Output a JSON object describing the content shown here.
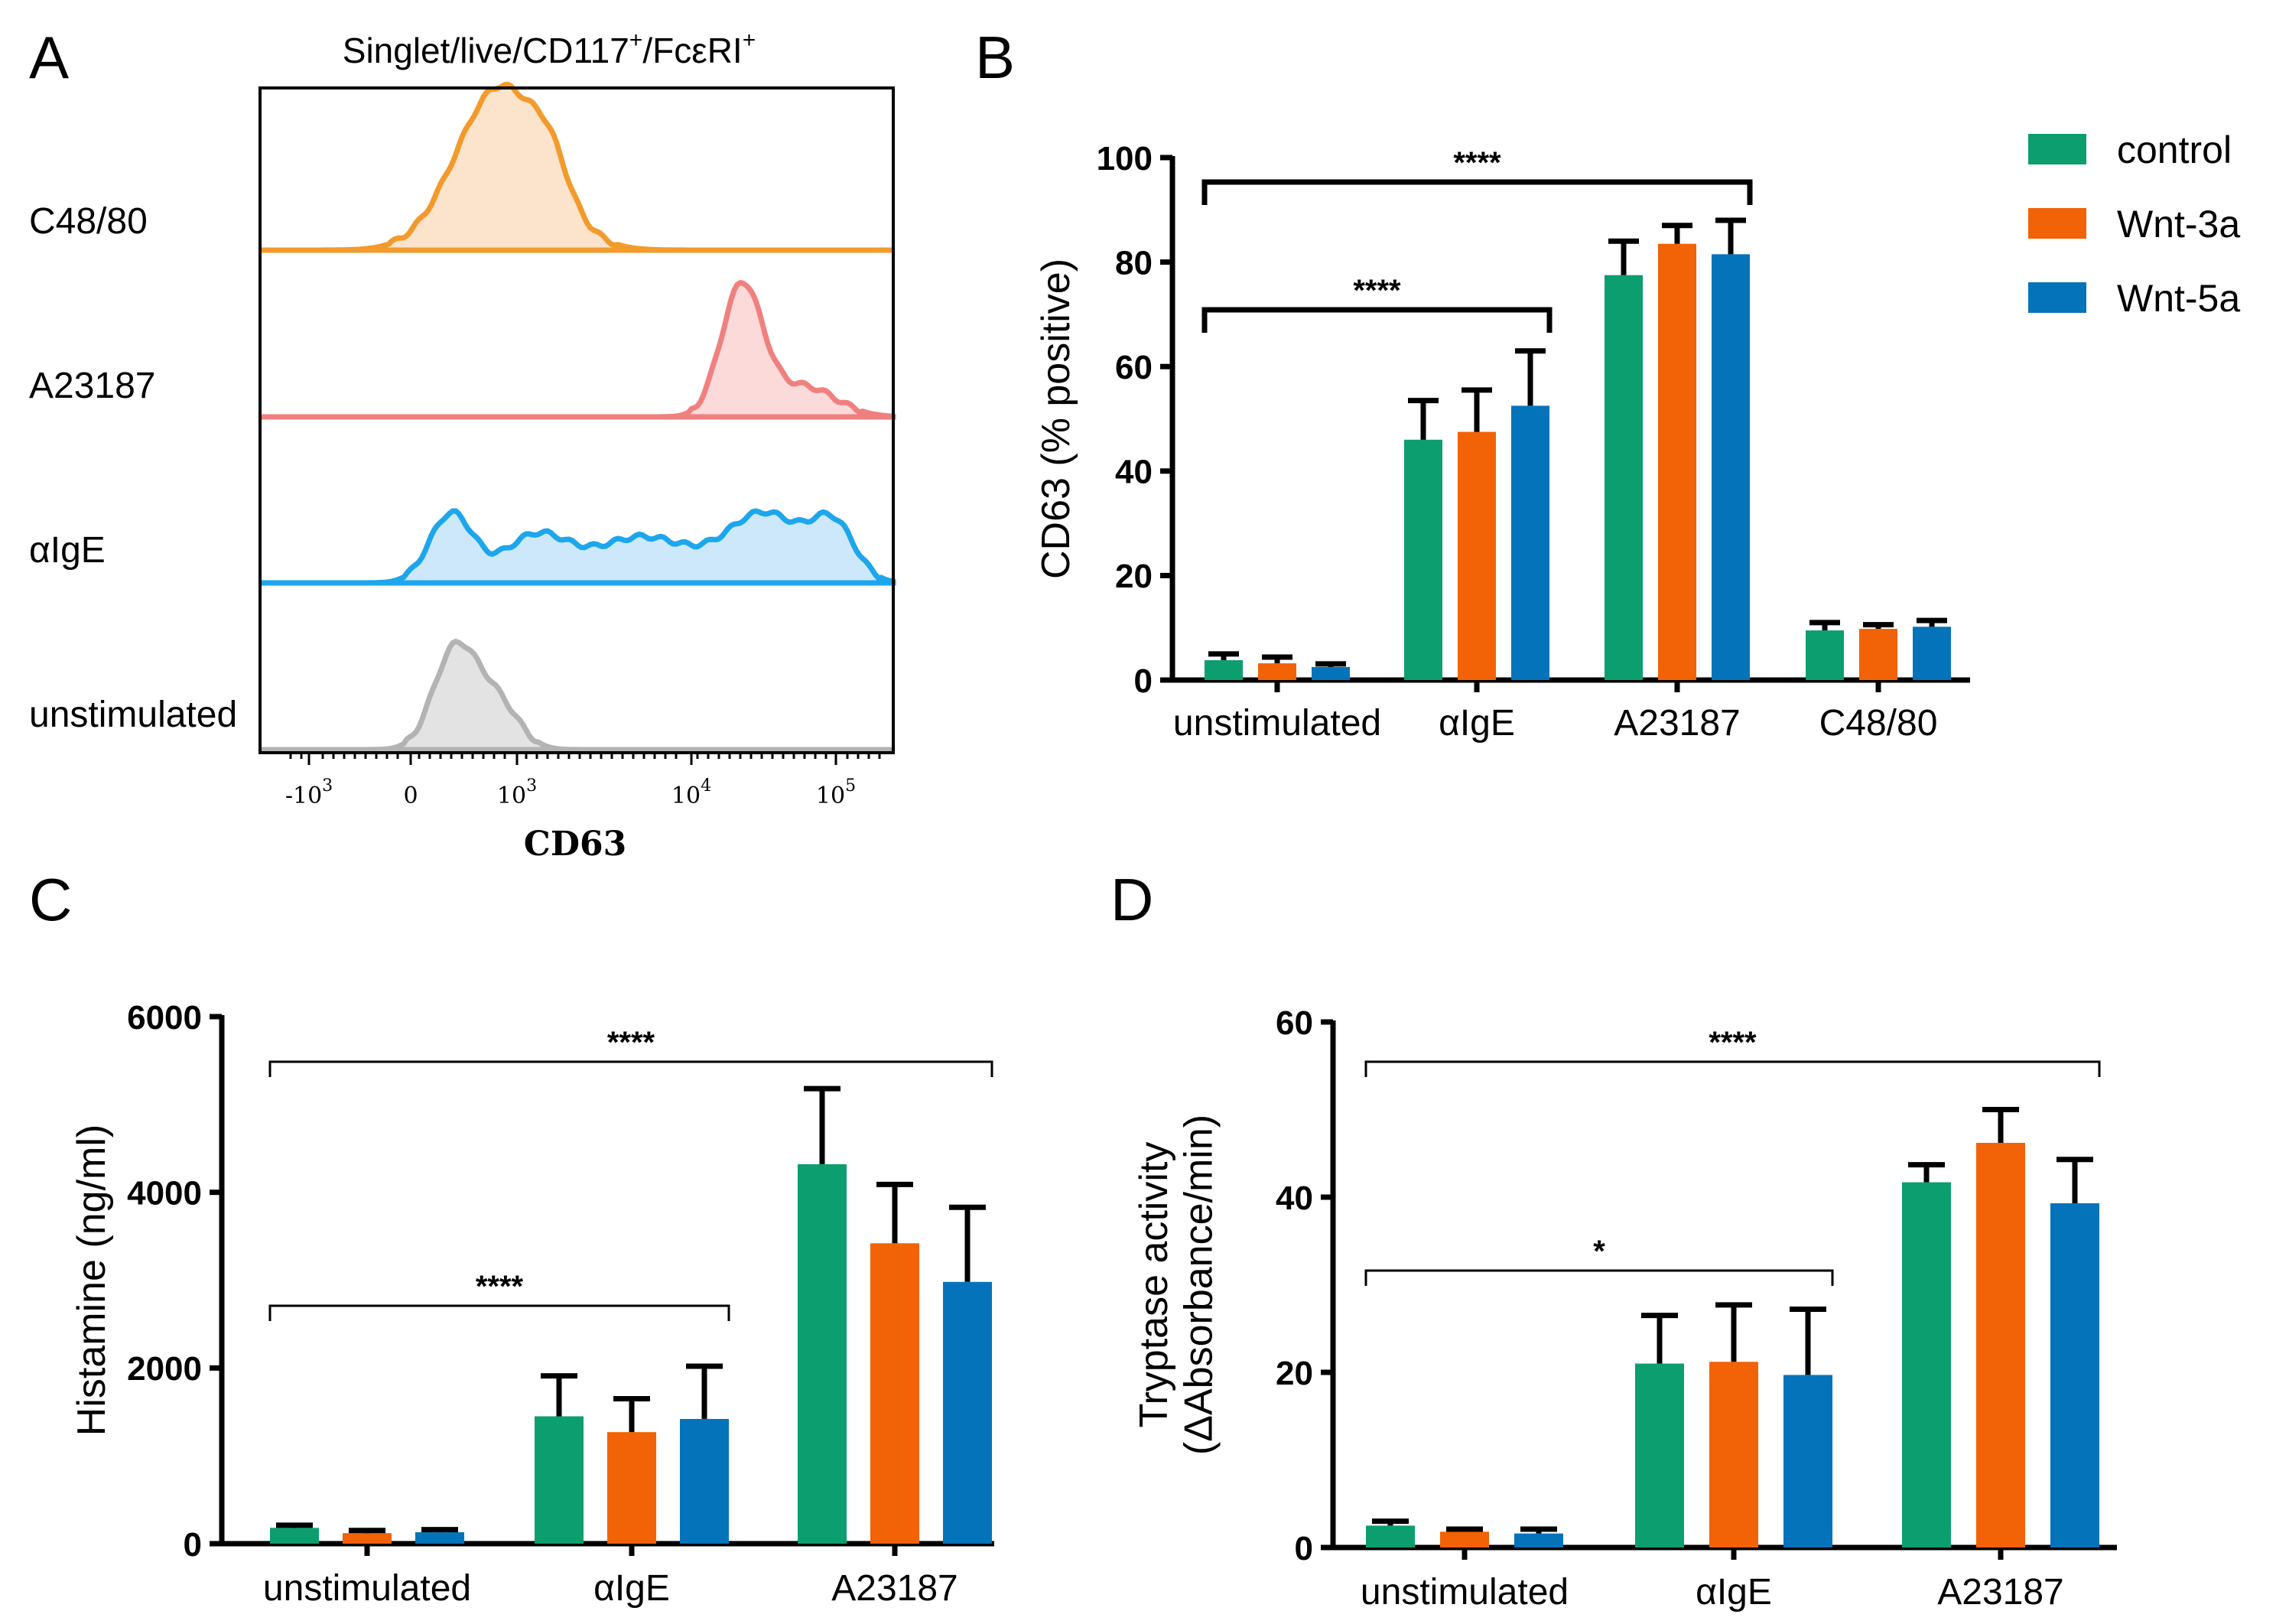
{
  "colors": {
    "control": "#0c9e6f",
    "wnt3a": "#f26207",
    "wnt5a": "#0573b9"
  },
  "legend": [
    "control",
    "Wnt-3a",
    "Wnt-5a"
  ],
  "panelA": {
    "letter": "A",
    "title": "Singlet/live/CD117",
    "title_sup1": "+",
    "title_mid": "/FcεRI",
    "title_sup2": "+",
    "row_labels": [
      "C48/80",
      "A23187",
      "αIgE",
      "unstimulated"
    ],
    "xlabel": "CD63",
    "ticks": [
      {
        "base": "-10",
        "exp": "3"
      },
      {
        "base": "0",
        "exp": ""
      },
      {
        "base": "10",
        "exp": "3"
      },
      {
        "base": "10",
        "exp": "4"
      },
      {
        "base": "10",
        "exp": "5"
      }
    ],
    "track_colors": [
      {
        "stroke": "#f39a2c",
        "fill": "#fce4cc"
      },
      {
        "stroke": "#f0807f",
        "fill": "#fcdada"
      },
      {
        "stroke": "#1da6ec",
        "fill": "#cde8fa"
      },
      {
        "stroke": "#b3b3b3",
        "fill": "#e3e3e3"
      }
    ]
  },
  "chart_data": [
    {
      "panel": "B",
      "type": "bar",
      "ylabel": "CD63 (% positive)",
      "ylim": [
        0,
        100
      ],
      "yticks": [
        0,
        20,
        40,
        60,
        80,
        100
      ],
      "categories": [
        "unstimulated",
        "αIgE",
        "A23187",
        "C48/80"
      ],
      "series": [
        {
          "name": "control",
          "values": [
            3.8,
            46,
            77.5,
            9.5
          ],
          "errors": [
            1.2,
            7.5,
            6.5,
            1.5
          ]
        },
        {
          "name": "Wnt-3a",
          "values": [
            3.2,
            47.5,
            83.5,
            9.8
          ],
          "errors": [
            1.2,
            8,
            3.5,
            0.8
          ]
        },
        {
          "name": "Wnt-5a",
          "values": [
            2.5,
            52.5,
            81.5,
            10.2
          ],
          "errors": [
            0.6,
            10.5,
            6.5,
            1.2
          ]
        }
      ],
      "brackets": [
        {
          "label": "****",
          "from": 0,
          "to": 1
        },
        {
          "label": "****",
          "from": 0,
          "to": 2
        }
      ]
    },
    {
      "panel": "C",
      "type": "bar",
      "ylabel": "Histamine (ng/ml)",
      "ylim": [
        0,
        6000
      ],
      "yticks": [
        0,
        2000,
        4000,
        6000
      ],
      "categories": [
        "unstimulated",
        "αIgE",
        "A23187"
      ],
      "series": [
        {
          "name": "control",
          "values": [
            180,
            1450,
            4320
          ],
          "errors": [
            30,
            460,
            860
          ]
        },
        {
          "name": "Wnt-3a",
          "values": [
            120,
            1270,
            3420
          ],
          "errors": [
            30,
            380,
            670
          ]
        },
        {
          "name": "Wnt-5a",
          "values": [
            130,
            1420,
            2980
          ],
          "errors": [
            30,
            600,
            850
          ]
        }
      ],
      "brackets": [
        {
          "label": "****",
          "from": 0,
          "to": 1
        },
        {
          "label": "****",
          "from": 0,
          "to": 2
        }
      ]
    },
    {
      "panel": "D",
      "type": "bar",
      "ylabel": "Tryptase activity",
      "ylabel2": "(ΔAbsorbance/min)",
      "ylim": [
        0,
        60
      ],
      "yticks": [
        0,
        20,
        40,
        60
      ],
      "categories": [
        "unstimulated",
        "αIgE",
        "A23187"
      ],
      "series": [
        {
          "name": "control",
          "values": [
            2.5,
            21,
            41.7
          ],
          "errors": [
            0.5,
            5.5,
            2
          ]
        },
        {
          "name": "Wnt-3a",
          "values": [
            1.8,
            21.2,
            46.2
          ],
          "errors": [
            0.3,
            6.5,
            3.8
          ]
        },
        {
          "name": "Wnt-5a",
          "values": [
            1.6,
            19.7,
            39.3
          ],
          "errors": [
            0.5,
            7.5,
            5
          ]
        }
      ],
      "brackets": [
        {
          "label": "*",
          "from": 0,
          "to": 1
        },
        {
          "label": "****",
          "from": 0,
          "to": 2
        }
      ]
    }
  ]
}
